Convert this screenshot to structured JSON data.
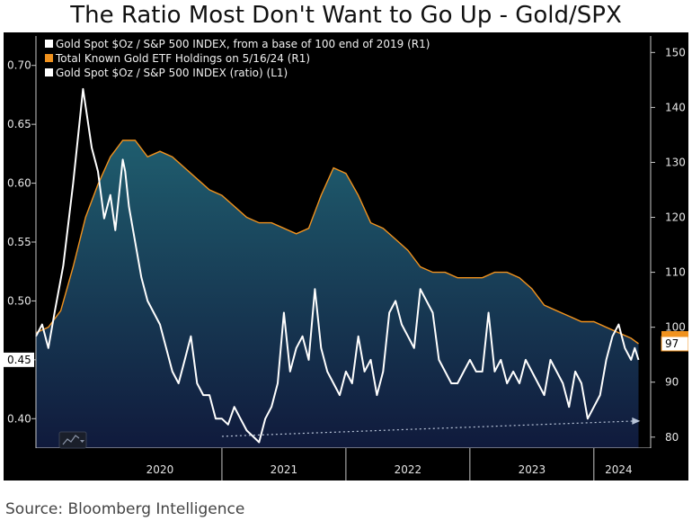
{
  "title": "The Ratio Most Don't Want to Go Up - Gold/SPX",
  "source": "Source: Bloomberg Intelligence",
  "colors": {
    "background": "#000000",
    "ratio_line": "#ffffff",
    "etf_line": "#f0921e",
    "area_top": "#1f5d6e",
    "area_bottom": "#101a3c",
    "arrow": "#b8c4d8",
    "last_value_box": "#f0921e"
  },
  "chart_data": {
    "type": "line",
    "legend_placement": "top-left",
    "legend": [
      {
        "label": "Gold Spot $Oz / S&P 500 INDEX, from a base of 100 end of 2019 (R1)",
        "color": "#ffffff"
      },
      {
        "label": "Total Known Gold ETF Holdings on 5/16/24 (R1)",
        "color": "#f0921e"
      },
      {
        "label": "Gold Spot $Oz / S&P 500 INDEX (ratio) (L1)",
        "color": "#ffffff"
      }
    ],
    "x_labels": [
      "2020",
      "2021",
      "2022",
      "2023",
      "2024"
    ],
    "x_range": [
      2019.5,
      2024.4
    ],
    "left_axis": {
      "ylim": [
        0.375,
        0.725
      ],
      "ticks": [
        "0.40",
        "0.45",
        "0.50",
        "0.55",
        "0.60",
        "0.65",
        "0.70"
      ]
    },
    "right_axis": {
      "ylim": [
        78,
        153
      ],
      "ticks": [
        "80",
        "90",
        "100",
        "110",
        "120",
        "130",
        "140",
        "150"
      ]
    },
    "last_values": {
      "left": "0.45",
      "right": "97"
    },
    "series": [
      {
        "name": "Gold Spot $Oz / S&P 500 INDEX (ratio) (L1)",
        "axis": "left",
        "x": [
          2019.5,
          2019.55,
          2019.6,
          2019.65,
          2019.72,
          2019.8,
          2019.88,
          2019.95,
          2020.0,
          2020.05,
          2020.1,
          2020.14,
          2020.18,
          2020.2,
          2020.22,
          2020.25,
          2020.3,
          2020.35,
          2020.4,
          2020.45,
          2020.5,
          2020.55,
          2020.6,
          2020.65,
          2020.7,
          2020.75,
          2020.8,
          2020.85,
          2020.9,
          2020.95,
          2021.0,
          2021.05,
          2021.1,
          2021.15,
          2021.2,
          2021.25,
          2021.3,
          2021.35,
          2021.4,
          2021.45,
          2021.5,
          2021.55,
          2021.6,
          2021.65,
          2021.7,
          2021.75,
          2021.8,
          2021.85,
          2021.9,
          2021.95,
          2022.0,
          2022.05,
          2022.1,
          2022.15,
          2022.2,
          2022.25,
          2022.3,
          2022.35,
          2022.4,
          2022.45,
          2022.5,
          2022.55,
          2022.6,
          2022.65,
          2022.7,
          2022.75,
          2022.8,
          2022.85,
          2022.9,
          2022.95,
          2023.0,
          2023.05,
          2023.1,
          2023.15,
          2023.2,
          2023.25,
          2023.3,
          2023.35,
          2023.4,
          2023.45,
          2023.5,
          2023.55,
          2023.6,
          2023.65,
          2023.7,
          2023.75,
          2023.8,
          2023.85,
          2023.9,
          2023.95,
          2024.0,
          2024.05,
          2024.1,
          2024.15,
          2024.2,
          2024.25,
          2024.3,
          2024.33,
          2024.36
        ],
        "values": [
          0.47,
          0.48,
          0.46,
          0.49,
          0.53,
          0.6,
          0.68,
          0.63,
          0.61,
          0.57,
          0.59,
          0.56,
          0.6,
          0.62,
          0.61,
          0.58,
          0.55,
          0.52,
          0.5,
          0.49,
          0.48,
          0.46,
          0.44,
          0.43,
          0.45,
          0.47,
          0.43,
          0.42,
          0.42,
          0.4,
          0.4,
          0.395,
          0.41,
          0.4,
          0.39,
          0.385,
          0.38,
          0.4,
          0.41,
          0.43,
          0.49,
          0.44,
          0.46,
          0.47,
          0.45,
          0.51,
          0.46,
          0.44,
          0.43,
          0.42,
          0.44,
          0.43,
          0.47,
          0.44,
          0.45,
          0.42,
          0.44,
          0.49,
          0.5,
          0.48,
          0.47,
          0.46,
          0.51,
          0.5,
          0.49,
          0.45,
          0.44,
          0.43,
          0.43,
          0.44,
          0.45,
          0.44,
          0.44,
          0.49,
          0.44,
          0.45,
          0.43,
          0.44,
          0.43,
          0.45,
          0.44,
          0.43,
          0.42,
          0.45,
          0.44,
          0.43,
          0.41,
          0.44,
          0.43,
          0.4,
          0.41,
          0.42,
          0.45,
          0.47,
          0.48,
          0.46,
          0.45,
          0.46,
          0.45
        ]
      },
      {
        "name": "Total Known Gold ETF Holdings on 5/16/24 (R1)",
        "axis": "right",
        "x": [
          2019.5,
          2019.6,
          2019.7,
          2019.8,
          2019.9,
          2020.0,
          2020.1,
          2020.2,
          2020.3,
          2020.4,
          2020.5,
          2020.6,
          2020.7,
          2020.8,
          2020.9,
          2021.0,
          2021.1,
          2021.2,
          2021.3,
          2021.4,
          2021.5,
          2021.6,
          2021.7,
          2021.8,
          2021.9,
          2022.0,
          2022.1,
          2022.2,
          2022.3,
          2022.4,
          2022.5,
          2022.6,
          2022.7,
          2022.8,
          2022.9,
          2023.0,
          2023.1,
          2023.2,
          2023.3,
          2023.4,
          2023.5,
          2023.6,
          2023.7,
          2023.8,
          2023.9,
          2024.0,
          2024.1,
          2024.2,
          2024.3,
          2024.36
        ],
        "values": [
          99,
          100,
          103,
          111,
          120,
          126,
          131,
          134,
          134,
          131,
          132,
          131,
          129,
          127,
          125,
          124,
          122,
          120,
          119,
          119,
          118,
          117,
          118,
          124,
          129,
          128,
          124,
          119,
          118,
          116,
          114,
          111,
          110,
          110,
          109,
          109,
          109,
          110,
          110,
          109,
          107,
          104,
          103,
          102,
          101,
          101,
          100,
          99,
          98,
          97
        ]
      }
    ],
    "annotation": {
      "type": "arrow",
      "from": {
        "x": 2021.0,
        "y": 0.385
      },
      "to": {
        "x": 2024.33,
        "y": 0.398
      }
    }
  }
}
